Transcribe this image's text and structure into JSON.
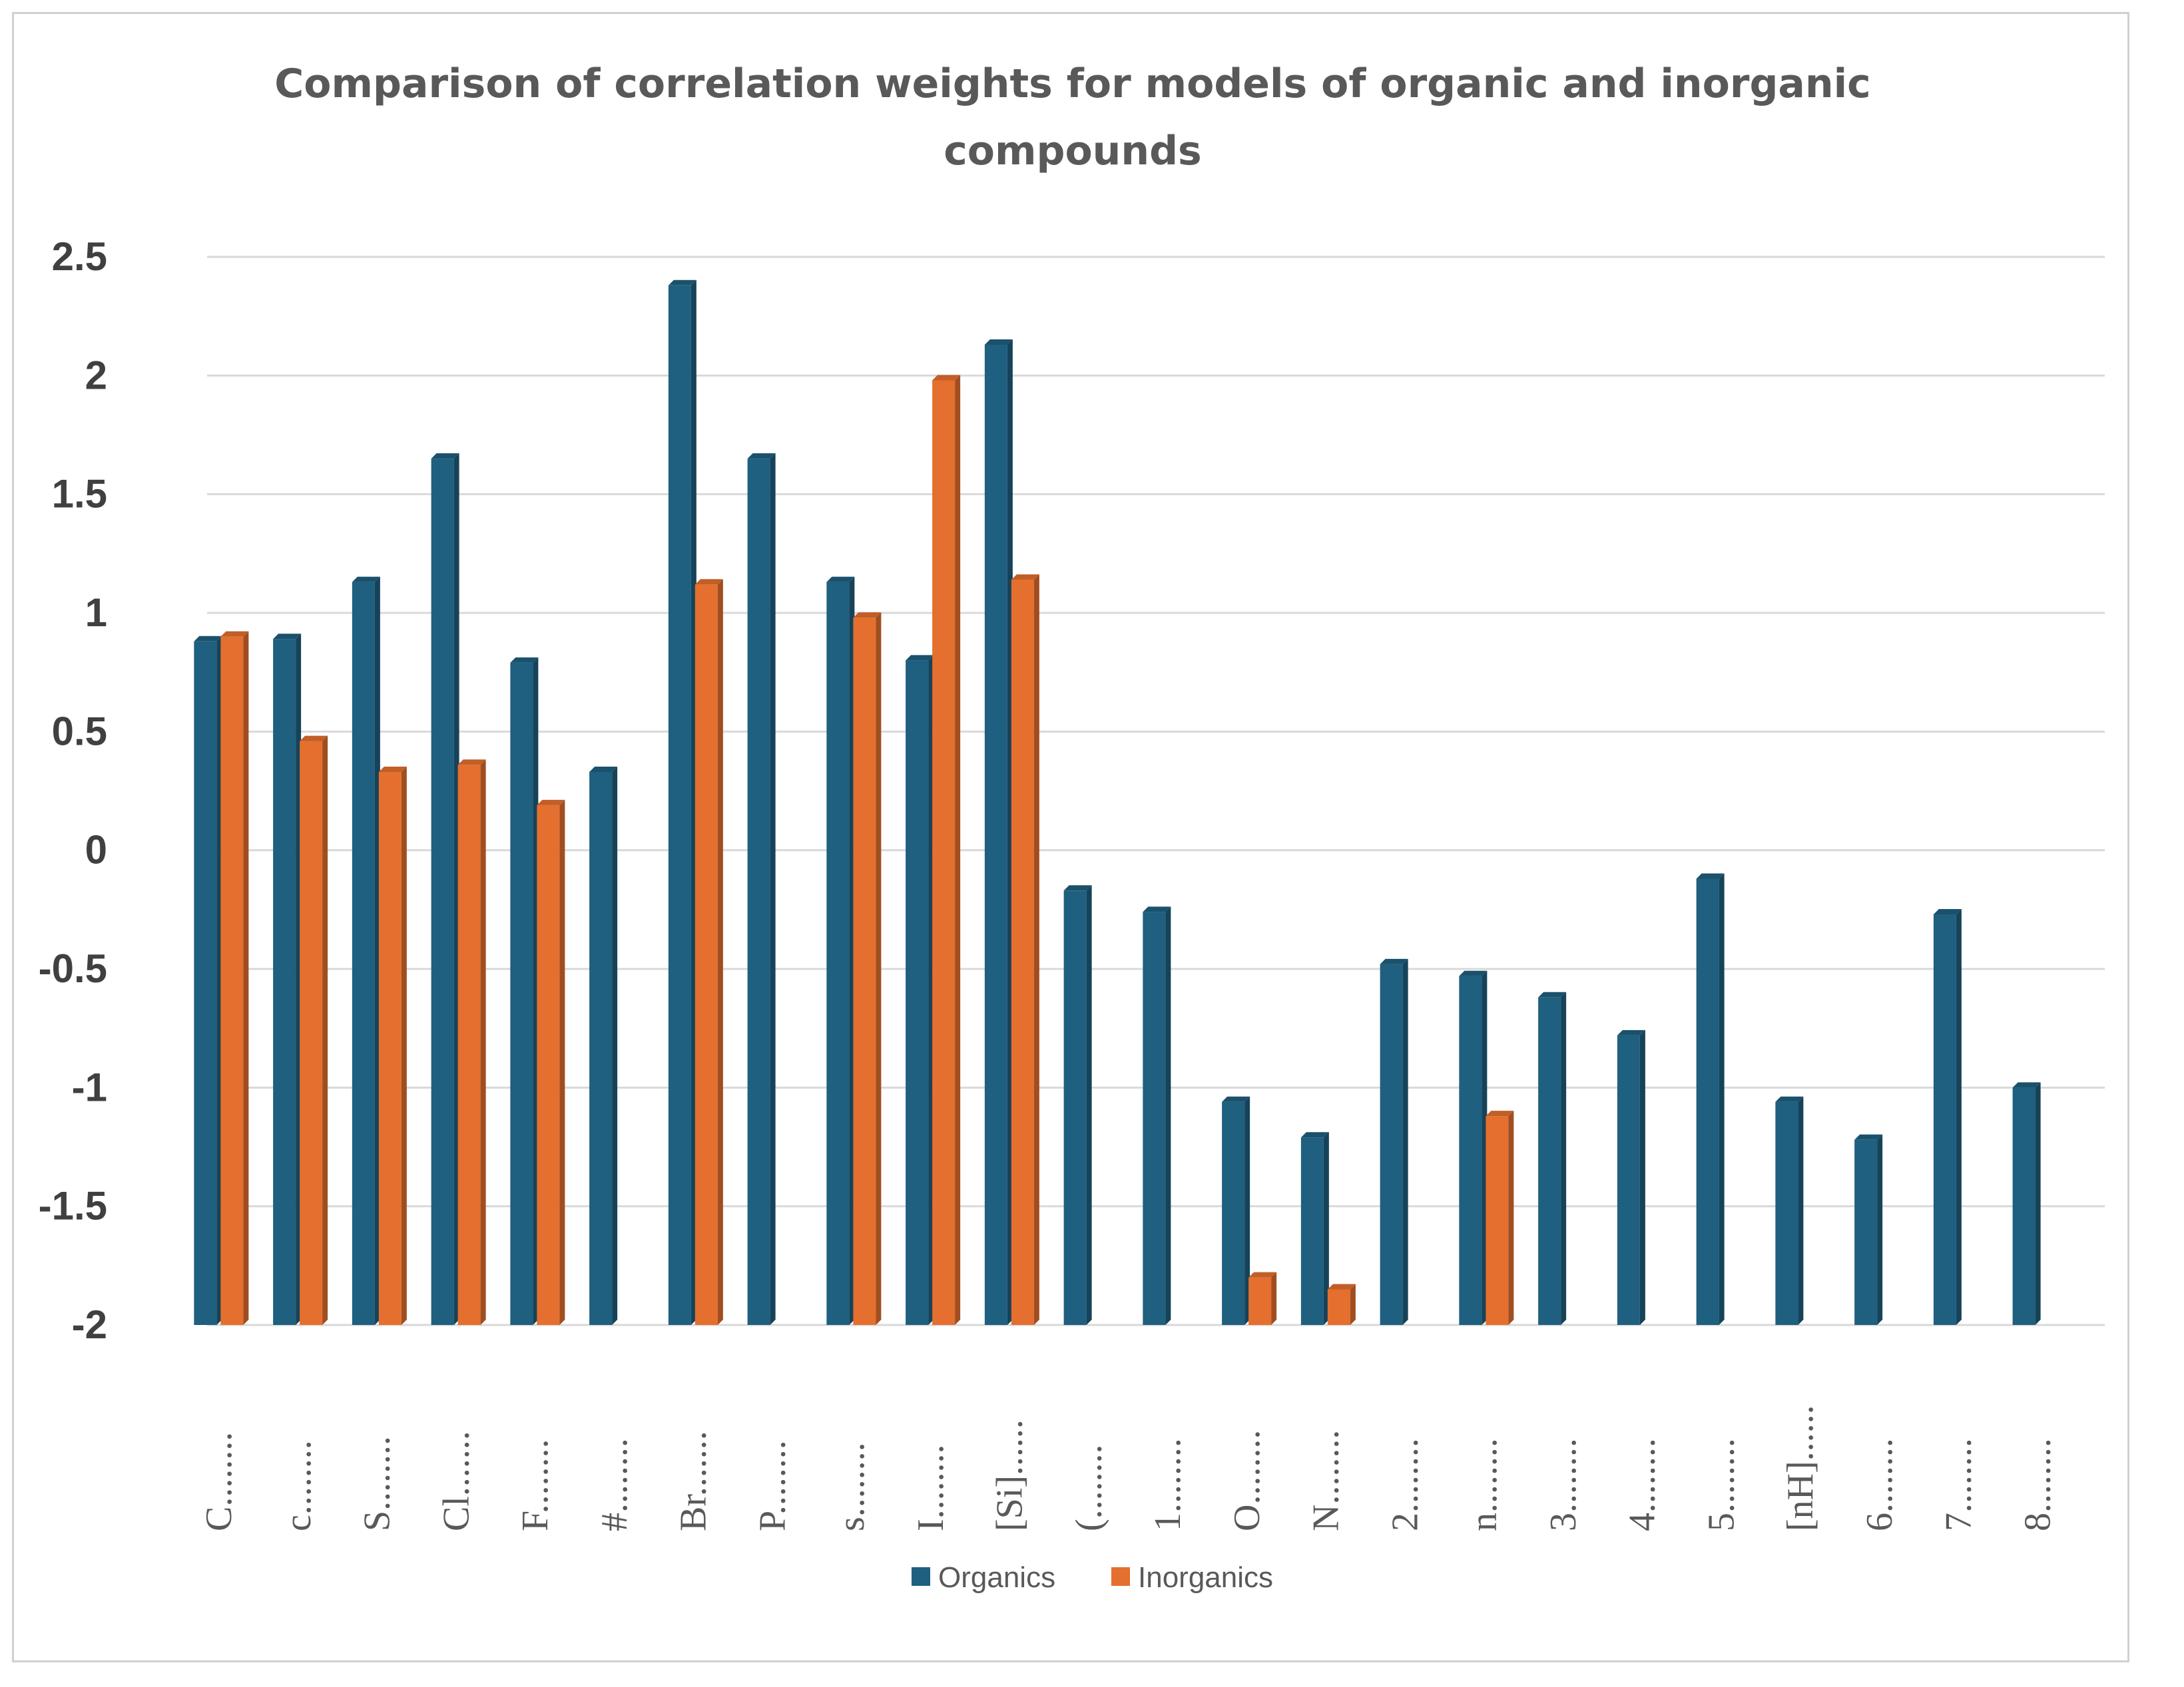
{
  "chart_data": {
    "type": "bar",
    "title": "Comparison of correlation weights for models of organic and inorganic compounds",
    "title_lines": [
      "Comparison of correlation weights for models of organic and inorganic",
      "compounds"
    ],
    "xlabel": "",
    "ylabel": "",
    "ylim": [
      -2,
      2.5
    ],
    "yticks": [
      2.5,
      2,
      1.5,
      1,
      0.5,
      0,
      -0.5,
      -1,
      -1.5,
      -2
    ],
    "ytick_labels": [
      "2.5",
      "2",
      "1.5",
      "1",
      "0.5",
      "0",
      "-0.5",
      "-1",
      "-1.5",
      "-2"
    ],
    "grid": true,
    "legend_position": "bottom",
    "categories": [
      "C........",
      "c........",
      "S........",
      "Cl.......",
      "F........",
      "#........",
      "Br.......",
      "P........",
      "s........",
      "I........",
      "[Si]......",
      "(........",
      "1........",
      "O........",
      "N........",
      "2........",
      "n........",
      "3........",
      "4........",
      "5........",
      "[nH]......",
      "6........",
      "7........",
      "8........"
    ],
    "series": [
      {
        "name": "Organics",
        "color": "#1f5f7f",
        "values": [
          0.88,
          0.89,
          1.13,
          1.65,
          0.79,
          0.33,
          2.38,
          1.65,
          1.13,
          0.8,
          2.13,
          -0.17,
          -0.26,
          -1.06,
          -1.21,
          -0.48,
          -0.53,
          -0.62,
          -0.78,
          -0.12,
          -1.06,
          -1.22,
          -0.27,
          -1.0
        ]
      },
      {
        "name": "Inorganics",
        "color": "#e46f2e",
        "values": [
          0.9,
          0.46,
          0.33,
          0.36,
          0.19,
          null,
          1.12,
          null,
          0.98,
          1.98,
          1.14,
          null,
          null,
          -1.8,
          -1.85,
          null,
          -1.12,
          null,
          null,
          null,
          null,
          null,
          null,
          null
        ]
      }
    ]
  }
}
